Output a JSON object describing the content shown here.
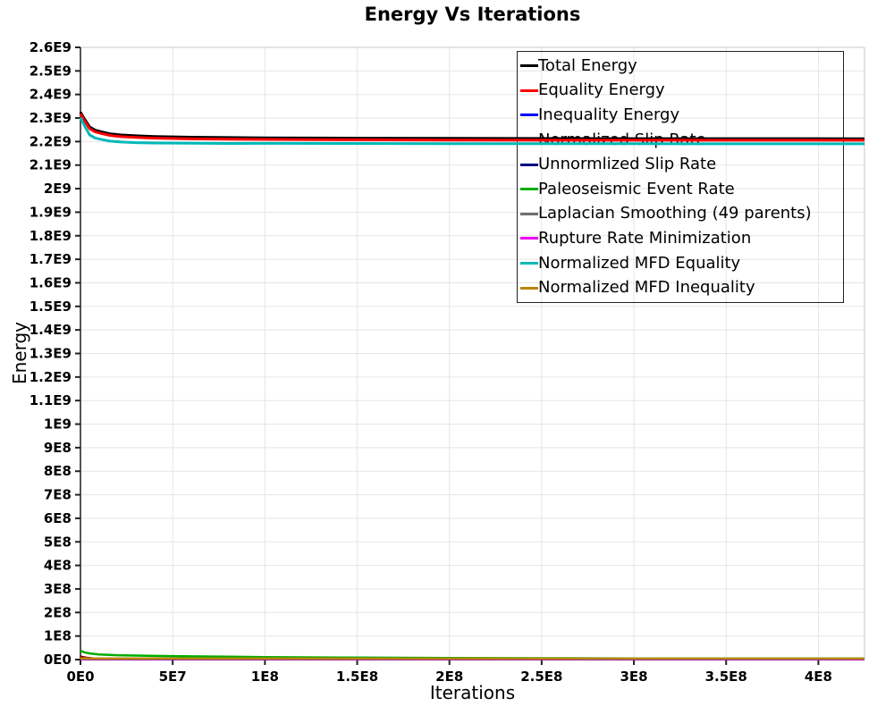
{
  "chart_data": {
    "type": "line",
    "title": "Energy Vs Iterations",
    "xlabel": "Iterations",
    "ylabel": "Energy",
    "xlim": [
      0,
      425000000.0
    ],
    "ylim": [
      0,
      2600000000.0
    ],
    "grid": true,
    "legend_position": "top-right-inside",
    "x_ticks": {
      "values": [
        0,
        50000000.0,
        100000000.0,
        150000000.0,
        200000000.0,
        250000000.0,
        300000000.0,
        350000000.0,
        400000000.0
      ],
      "labels": [
        "0E0",
        "5E7",
        "1E8",
        "1.5E8",
        "2E8",
        "2.5E8",
        "3E8",
        "3.5E8",
        "4E8"
      ]
    },
    "y_ticks": {
      "values": [
        0,
        100000000.0,
        200000000.0,
        300000000.0,
        400000000.0,
        500000000.0,
        600000000.0,
        700000000.0,
        800000000.0,
        900000000.0,
        1000000000.0,
        1100000000.0,
        1200000000.0,
        1300000000.0,
        1400000000.0,
        1500000000.0,
        1600000000.0,
        1700000000.0,
        1800000000.0,
        1900000000.0,
        2000000000.0,
        2100000000.0,
        2200000000.0,
        2300000000.0,
        2400000000.0,
        2500000000.0,
        2600000000.0
      ],
      "labels": [
        "0E0",
        "1E8",
        "2E8",
        "3E8",
        "4E8",
        "5E8",
        "6E8",
        "7E8",
        "8E8",
        "9E8",
        "1E9",
        "1.1E9",
        "1.2E9",
        "1.3E9",
        "1.4E9",
        "1.5E9",
        "1.6E9",
        "1.7E9",
        "1.8E9",
        "1.9E9",
        "2E9",
        "2.1E9",
        "2.2E9",
        "2.3E9",
        "2.4E9",
        "2.5E9",
        "2.6E9"
      ]
    },
    "series": [
      {
        "name": "Total Energy",
        "color": "#000000",
        "width": 3,
        "points": [
          [
            0,
            2325000000.0
          ],
          [
            2000000.0,
            2298000000.0
          ],
          [
            5000000.0,
            2262000000.0
          ],
          [
            8000000.0,
            2248000000.0
          ],
          [
            12000000.0,
            2240000000.0
          ],
          [
            16000000.0,
            2233000000.0
          ],
          [
            22000000.0,
            2228000000.0
          ],
          [
            30000000.0,
            2224500000.0
          ],
          [
            40000000.0,
            2221500000.0
          ],
          [
            60000000.0,
            2218500000.0
          ],
          [
            80000000.0,
            2217000000.0
          ],
          [
            100000000.0,
            2216000000.0
          ],
          [
            150000000.0,
            2214500000.0
          ],
          [
            200000000.0,
            2213500000.0
          ],
          [
            300000000.0,
            2212500000.0
          ],
          [
            425000000.0,
            2212000000.0
          ]
        ]
      },
      {
        "name": "Equality Energy",
        "color": "#ff0000",
        "width": 3,
        "points": [
          [
            0,
            2318000000.0
          ],
          [
            2000000.0,
            2291000000.0
          ],
          [
            5000000.0,
            2255000000.0
          ],
          [
            8000000.0,
            2241000000.0
          ],
          [
            12000000.0,
            2233000000.0
          ],
          [
            16000000.0,
            2226000000.0
          ],
          [
            22000000.0,
            2221000000.0
          ],
          [
            30000000.0,
            2217500000.0
          ],
          [
            40000000.0,
            2214500000.0
          ],
          [
            60000000.0,
            2211500000.0
          ],
          [
            80000000.0,
            2210000000.0
          ],
          [
            100000000.0,
            2209000000.0
          ],
          [
            150000000.0,
            2207500000.0
          ],
          [
            200000000.0,
            2206500000.0
          ],
          [
            300000000.0,
            2205800000.0
          ],
          [
            425000000.0,
            2205500000.0
          ]
        ]
      },
      {
        "name": "Inequality Energy",
        "color": "#0000ff",
        "width": 2,
        "points": [
          [
            0,
            4000000.0
          ],
          [
            10000000.0,
            2500000.0
          ],
          [
            100000000.0,
            2000000.0
          ],
          [
            425000000.0,
            1500000.0
          ]
        ]
      },
      {
        "name": "Normalized Slip Rate",
        "color": "#8b0000",
        "width": 2,
        "points": [
          [
            0,
            14000000.0
          ],
          [
            3000000.0,
            9000000.0
          ],
          [
            8000000.0,
            5500000.0
          ],
          [
            20000000.0,
            3500000.0
          ],
          [
            60000000.0,
            2500000.0
          ],
          [
            425000000.0,
            2000000.0
          ]
        ]
      },
      {
        "name": "Unnormlized Slip Rate",
        "color": "#000080",
        "width": 2,
        "points": [
          [
            0,
            3000000.0
          ],
          [
            10000000.0,
            2000000.0
          ],
          [
            425000000.0,
            1200000.0
          ]
        ]
      },
      {
        "name": "Paleoseismic Event Rate",
        "color": "#00ad00",
        "width": 2.5,
        "points": [
          [
            0,
            38000000.0
          ],
          [
            2000000.0,
            31000000.0
          ],
          [
            5000000.0,
            26000000.0
          ],
          [
            10000000.0,
            22000000.0
          ],
          [
            20000000.0,
            18500000.0
          ],
          [
            40000000.0,
            15500000.0
          ],
          [
            60000000.0,
            13500000.0
          ],
          [
            80000000.0,
            12000000.0
          ],
          [
            100000000.0,
            10500000.0
          ],
          [
            150000000.0,
            8200000.0
          ],
          [
            200000000.0,
            6600000.0
          ],
          [
            250000000.0,
            5600000.0
          ],
          [
            300000000.0,
            5000000.0
          ],
          [
            350000000.0,
            4700000.0
          ],
          [
            425000000.0,
            4500000.0
          ]
        ]
      },
      {
        "name": "Laplacian Smoothing (49 parents)",
        "color": "#707070",
        "width": 2,
        "points": [
          [
            0,
            6000000.0
          ],
          [
            20000000.0,
            4500000.0
          ],
          [
            100000000.0,
            3500000.0
          ],
          [
            425000000.0,
            3000000.0
          ]
        ]
      },
      {
        "name": "Rupture Rate Minimization",
        "color": "#ee00ee",
        "width": 2,
        "points": [
          [
            0,
            2000000.0
          ],
          [
            425000000.0,
            1000000.0
          ]
        ]
      },
      {
        "name": "Normalized MFD Equality",
        "color": "#00b8b8",
        "width": 3,
        "points": [
          [
            0,
            2302000000.0
          ],
          [
            2000000.0,
            2270000000.0
          ],
          [
            5000000.0,
            2228000000.0
          ],
          [
            8000000.0,
            2215000000.0
          ],
          [
            12000000.0,
            2208000000.0
          ],
          [
            16000000.0,
            2202000000.0
          ],
          [
            22000000.0,
            2198000000.0
          ],
          [
            30000000.0,
            2195500000.0
          ],
          [
            40000000.0,
            2194000000.0
          ],
          [
            60000000.0,
            2192800000.0
          ],
          [
            80000000.0,
            2192000000.0
          ],
          [
            100000000.0,
            2192500000.0
          ],
          [
            150000000.0,
            2191800000.0
          ],
          [
            200000000.0,
            2191200000.0
          ],
          [
            300000000.0,
            2190800000.0
          ],
          [
            425000000.0,
            2190500000.0
          ]
        ]
      },
      {
        "name": "Normalized MFD Inequality",
        "color": "#b8860b",
        "width": 2.5,
        "points": [
          [
            0,
            5000000.0
          ],
          [
            100000000.0,
            4500000.0
          ],
          [
            425000000.0,
            4200000.0
          ]
        ]
      }
    ]
  },
  "colors": {
    "grid": "#e5e5e5",
    "axis": "#555555",
    "frame": "#c8c8c8",
    "tick": "#222222",
    "legend_border": "#222222"
  }
}
